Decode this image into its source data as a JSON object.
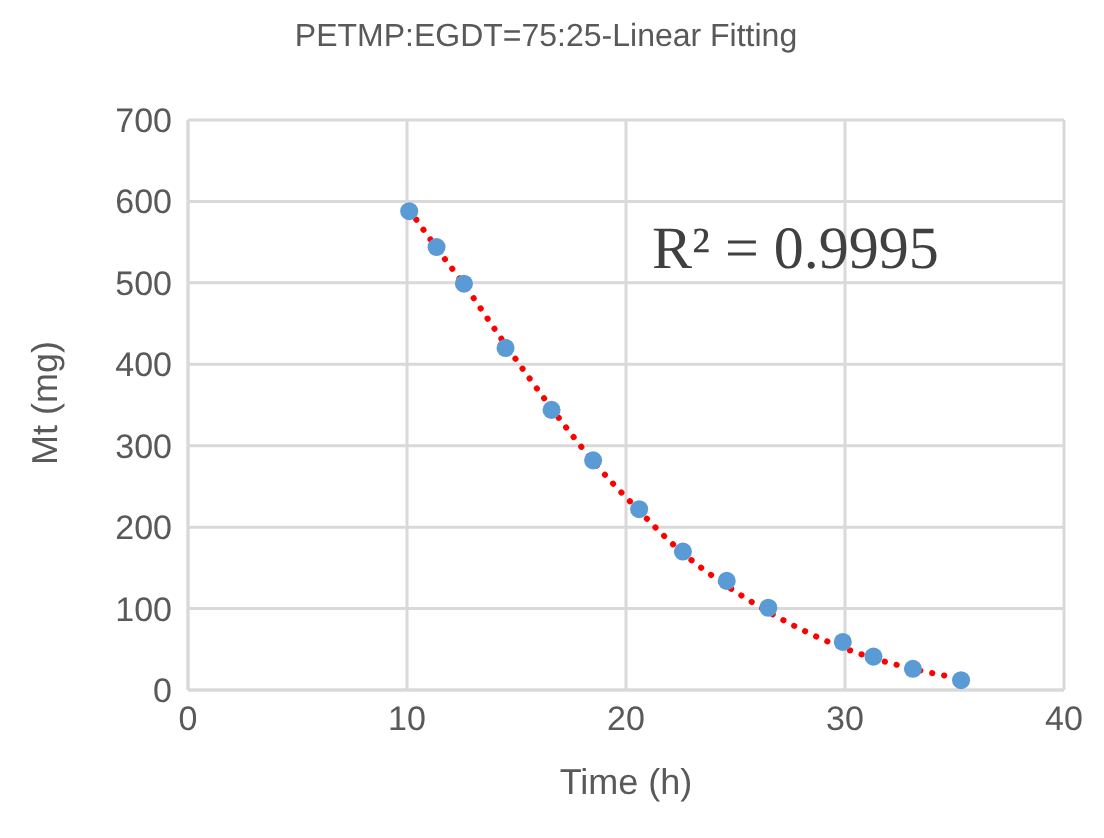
{
  "chart_data": {
    "type": "scatter",
    "title": "PETMP:EGDT=75:25-Linear Fitting",
    "xlabel": "Time (h)",
    "ylabel": "Mt (mg)",
    "series": [
      {
        "type": "scatter",
        "color": "#5b9bd5",
        "marker": "circle",
        "x": [
          10.1,
          11.35,
          12.6,
          14.5,
          16.6,
          18.5,
          20.6,
          22.6,
          24.6,
          26.5,
          29.9,
          31.3,
          33.1,
          35.3
        ],
        "values": [
          588,
          544,
          499,
          420,
          344,
          282,
          222,
          170,
          134,
          101,
          59,
          41,
          26,
          12
        ]
      },
      {
        "type": "line",
        "color": "#ff0000",
        "line_style": "dotted",
        "marker": "none",
        "x": [
          10.1,
          11.35,
          12.6,
          14.5,
          16.6,
          18.5,
          20.6,
          22.6,
          24.6,
          26.5,
          29.9,
          31.3,
          33.1,
          35.3
        ],
        "values": [
          590,
          543,
          498,
          424,
          346,
          281,
          220,
          168,
          128,
          96,
          52,
          39,
          26,
          14
        ]
      }
    ],
    "annotations": [
      "R² = 0.9995"
    ],
    "xlim": [
      0,
      40
    ],
    "xticks": [
      0,
      10,
      20,
      30,
      40
    ],
    "ylim": [
      0,
      700
    ],
    "yticks": [
      0,
      100,
      200,
      300,
      400,
      500,
      600,
      700
    ],
    "grid": true,
    "legend": false
  }
}
